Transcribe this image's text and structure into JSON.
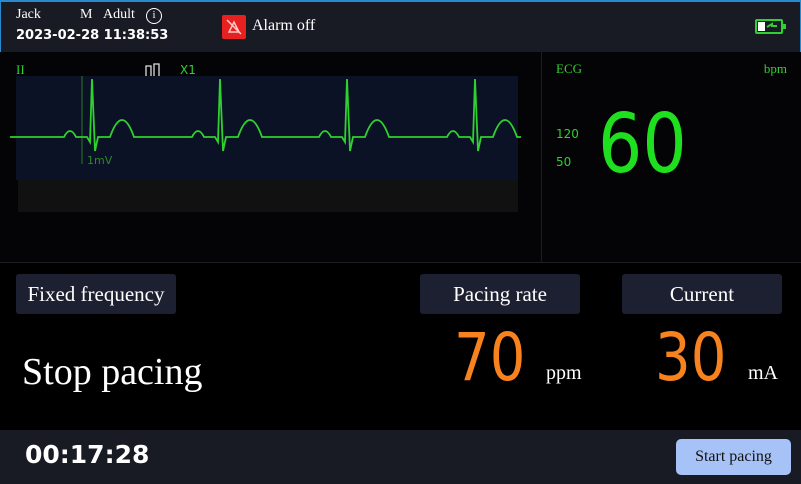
{
  "patient": {
    "name": "Jack",
    "sex": "M",
    "type": "Adult",
    "datetime": "2023-02-28 11:38:53"
  },
  "alarm": {
    "label": "Alarm off",
    "color": "#e8201f",
    "icon": "alarm-off-icon"
  },
  "battery": {
    "icon": "battery-charging-icon",
    "color": "#2fd02f"
  },
  "waveform": {
    "lead": "II",
    "gain": "X1",
    "scale": "1mV",
    "color": "#2fd02f"
  },
  "ecg": {
    "label": "ECG",
    "unit": "bpm",
    "upper_limit": "120",
    "lower_limit": "50",
    "value": "60"
  },
  "pacing": {
    "mode": "Fixed frequency",
    "status": "Stop pacing",
    "rate_label": "Pacing rate",
    "rate_value": "70",
    "rate_unit": "ppm",
    "current_label": "Current",
    "current_value": "30",
    "current_unit": "mA",
    "accent": "#f7821e"
  },
  "footer": {
    "timer": "00:17:28",
    "start_button": "Start pacing"
  }
}
